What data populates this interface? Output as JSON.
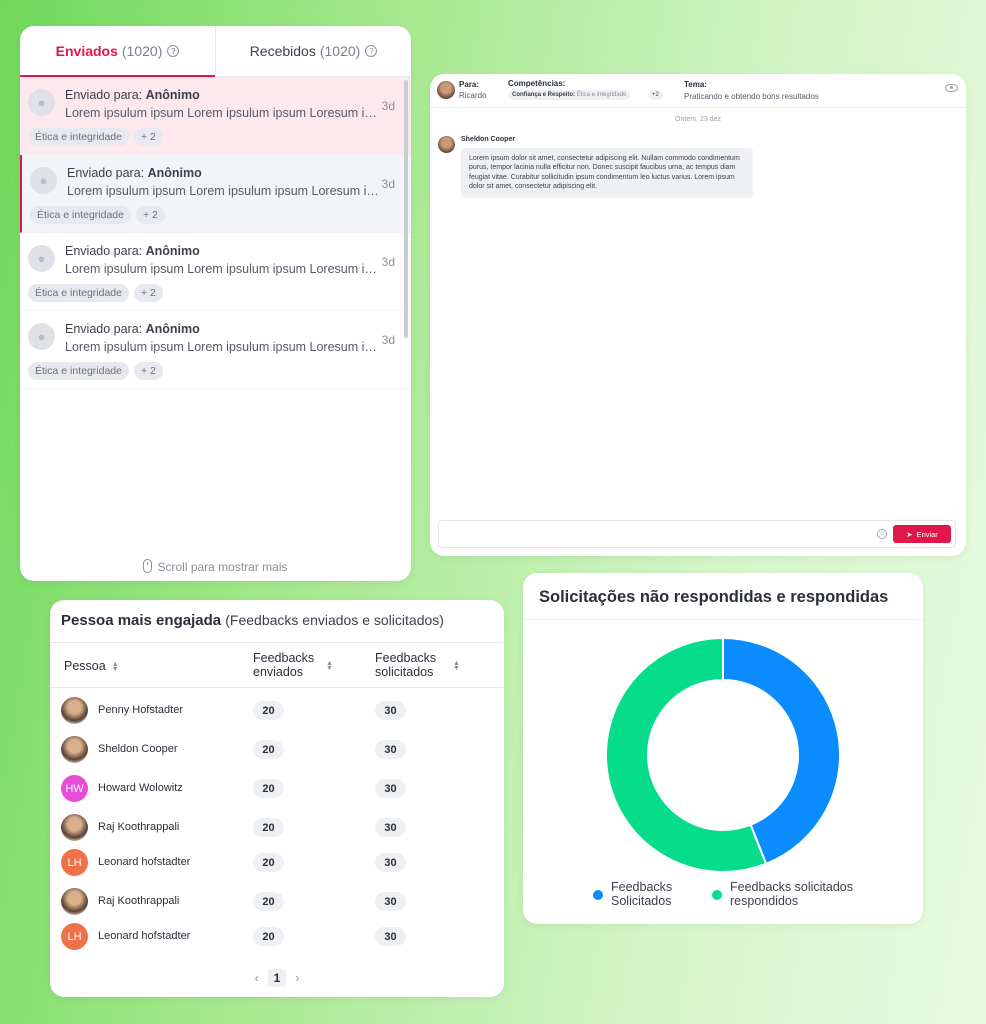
{
  "inbox": {
    "tabs": [
      {
        "label": "Enviados",
        "count": "(1020)"
      },
      {
        "label": "Recebidos",
        "count": "(1020)"
      }
    ],
    "items": [
      {
        "to_prefix": "Enviado para:",
        "to_name": "Anônimo",
        "preview": "Lorem ipsulum ipsum Lorem ipsulum ipsum Loresum ipsum",
        "time": "3d",
        "tag": "Ética e integridade",
        "more": "+ 2"
      },
      {
        "to_prefix": "Enviado para:",
        "to_name": "Anônimo",
        "preview": "Lorem ipsulum ipsum Lorem ipsulum ipsum Loresum ipsum",
        "time": "3d",
        "tag": "Ética e integridade",
        "more": "+ 2"
      },
      {
        "to_prefix": "Enviado para:",
        "to_name": "Anônimo",
        "preview": "Lorem ipsulum ipsum Lorem ipsulum ipsum Loresum ipsum",
        "time": "3d",
        "tag": "Ética e integridade",
        "more": "+ 2"
      },
      {
        "to_prefix": "Enviado para:",
        "to_name": "Anônimo",
        "preview": "Lorem ipsulum ipsum Lorem ipsulum ipsum Loresum ipsum",
        "time": "3d",
        "tag": "Ética e integridade",
        "more": "+ 2"
      }
    ],
    "scroll_hint": "Scroll para mostrar mais",
    "accent": "#e0184a"
  },
  "chat": {
    "to_label": "Para:",
    "to_value": "Ricardo",
    "skills_label": "Competências:",
    "skill_chip_bold": "Confiança e Respeito:",
    "skill_chip_light": "Ética e integridade",
    "skill_more": "+2",
    "theme_label": "Tema:",
    "theme_value": "Praticando e obtendo bons resultados",
    "date": "Ontem, 23 dez",
    "sender": "Sheldon Cooper",
    "message": "Lorem ipsum dolor sit amet, consectetur adipiscing elit. Nullam commodo condimentum purus, tempor lacinia nulla efficitur non. Donec suscipit faucibus urna, ac tempus diam feugiat vitae. Curabitur sollicitudin ipsum condimentum leo luctus varius. Lorem ipsum dolor sit amet, consectetur adipiscing elit.",
    "send_label": "Enviar"
  },
  "engaged": {
    "title": "Pessoa mais engajada",
    "subtitle": "(Feedbacks enviados e solicitados)",
    "col_person": "Pessoa",
    "col_sent_1": "Feedbacks",
    "col_sent_2": "enviados",
    "col_req_1": "Feedbacks",
    "col_req_2": "solicitados",
    "rows": [
      {
        "name": "Penny Hofstadter",
        "initials": "",
        "avatar": "photo",
        "sent": "20",
        "requested": "30"
      },
      {
        "name": "Sheldon Cooper",
        "initials": "",
        "avatar": "photo",
        "sent": "20",
        "requested": "30"
      },
      {
        "name": "Howard Wolowitz",
        "initials": "HW",
        "avatar": "#e84bd8",
        "sent": "20",
        "requested": "30"
      },
      {
        "name": "Raj Koothrappali",
        "initials": "",
        "avatar": "photo",
        "sent": "20",
        "requested": "30"
      },
      {
        "name": "Leonard hofstadter",
        "initials": "LH",
        "avatar": "#f0704a",
        "sent": "20",
        "requested": "30"
      },
      {
        "name": "Raj Koothrappali",
        "initials": "",
        "avatar": "photo",
        "sent": "20",
        "requested": "30"
      },
      {
        "name": "Leonard hofstadter",
        "initials": "LH",
        "avatar": "#f0704a",
        "sent": "20",
        "requested": "30"
      }
    ],
    "page": "1"
  },
  "chart_data": {
    "type": "pie",
    "title": "Solicitações não respondidas e respondidas",
    "series": [
      {
        "name": "Feedbacks Solicitados",
        "value": 44,
        "color": "#0a8cff"
      },
      {
        "name": "Feedbacks solicitados respondidos",
        "value": 56,
        "color": "#05dd8a"
      }
    ],
    "legend_labels": [
      [
        "Feedbacks",
        "Solicitados"
      ],
      [
        "Feedbacks  solicitados",
        "respondidos"
      ]
    ],
    "legend": "bottom"
  }
}
